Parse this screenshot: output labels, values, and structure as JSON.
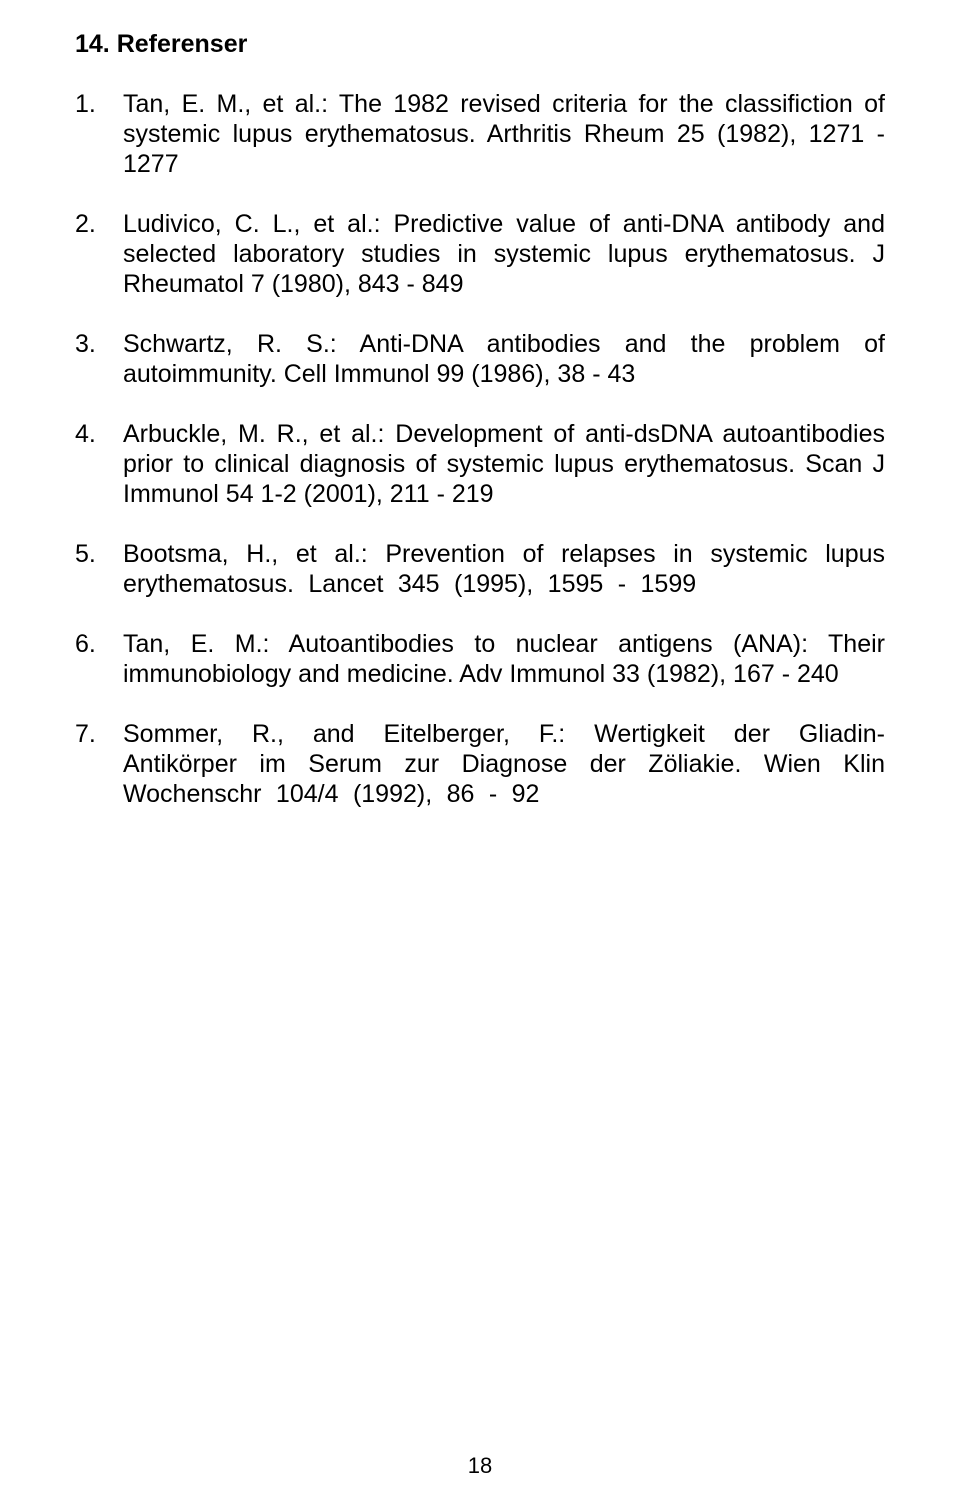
{
  "heading": "14. Referenser",
  "references": [
    {
      "num": "1.",
      "text": "Tan, E. M., et al.: The 1982 revised criteria for the classifiction of systemic lupus erythematosus. Arthritis Rheum 25 (1982), 1271 - 1277",
      "justifyClass": "j1"
    },
    {
      "num": "2.",
      "text": "Ludivico, C. L., et al.: Predictive value of anti-DNA antibody and selected laboratory studies in systemic lupus erythematosus. J Rheumatol 7 (1980), 843 - 849",
      "justifyClass": "j1"
    },
    {
      "num": "3.",
      "text": "Schwartz, R. S.: Anti-DNA antibodies and the problem of autoimmunity. Cell Immunol 99 (1986), 38 - 43",
      "justifyClass": "j1"
    },
    {
      "num": "4.",
      "text": "Arbuckle, M. R., et al.: Development of anti-dsDNA autoantibodies prior to clinical diagnosis of systemic lupus erythematosus. Scan J Immunol 54 1-2 (2001), 211 - 219",
      "justifyClass": "j1"
    },
    {
      "num": "5.",
      "text": "Bootsma, H., et al.: Prevention of relapses in systemic lupus erythematosus. Lancet 345 (1995), 1595 - 1599",
      "justifyClass": "j2"
    },
    {
      "num": "6.",
      "text": "Tan, E. M.: Autoantibodies to nuclear antigens (ANA): Their immunobiology and medicine. Adv Immunol 33 (1982), 167 - 240",
      "justifyClass": "j1"
    },
    {
      "num": "7.",
      "text": "Sommer, R., and Eitelberger, F.: Wertigkeit der Gliadin-Antikörper im Serum zur Diagnose der Zöliakie. Wien Klin Wochenschr 104/4 (1992), 86 - 92",
      "justifyClass": "j2"
    }
  ],
  "pageNumber": "18"
}
